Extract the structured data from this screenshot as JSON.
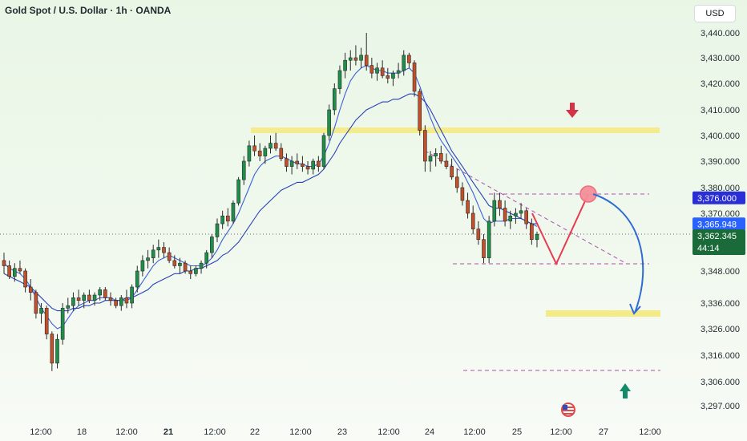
{
  "chart_header": {
    "title": "Gold Spot / U.S. Dollar · 1h · OANDA",
    "currency": "USD"
  },
  "chart_data": {
    "type": "candlestick",
    "title": "Gold Spot / U.S. Dollar · 1h · OANDA",
    "symbol": "XAUUSD",
    "timeframe": "1h",
    "yrange": [
      3294,
      3446
    ],
    "y_ticks": [
      "3,440.000",
      "3,430.000",
      "3,420.000",
      "3,410.000",
      "3,400.000",
      "3,390.000",
      "3,380.000",
      "3,370.000",
      "3,348.000",
      "3,336.000",
      "3,326.000",
      "3,316.000",
      "3,306.000",
      "3,297.000"
    ],
    "x_ticks": [
      "12:00",
      "18",
      "12:00",
      "21",
      "12:00",
      "22",
      "12:00",
      "23",
      "12:00",
      "24",
      "12:00",
      "25",
      "12:00",
      "27",
      "12:00"
    ],
    "price_labels": [
      {
        "value": 3376.0,
        "text": "3,376.000",
        "color": "#2a2ed6"
      },
      {
        "value": 3365.948,
        "text": "3,365.948",
        "color": "#2962ff"
      },
      {
        "value": 3362.345,
        "text": "3,362.345",
        "sub": "44:14",
        "color": "#1b6b3a"
      }
    ],
    "candles_ohlc": [
      [
        3352,
        3355,
        3347,
        3350
      ],
      [
        3350,
        3352,
        3345,
        3346
      ],
      [
        3346,
        3351,
        3344,
        3349
      ],
      [
        3349,
        3352,
        3347,
        3348
      ],
      [
        3348,
        3349,
        3340,
        3342
      ],
      [
        3342,
        3345,
        3337,
        3340
      ],
      [
        3340,
        3341,
        3330,
        3332
      ],
      [
        3332,
        3336,
        3328,
        3334
      ],
      [
        3334,
        3335,
        3322,
        3324
      ],
      [
        3324,
        3325,
        3310,
        3313
      ],
      [
        3313,
        3324,
        3311,
        3322
      ],
      [
        3322,
        3336,
        3320,
        3334
      ],
      [
        3334,
        3338,
        3332,
        3335
      ],
      [
        3335,
        3340,
        3333,
        3338
      ],
      [
        3338,
        3341,
        3335,
        3337
      ],
      [
        3337,
        3340,
        3334,
        3339
      ],
      [
        3339,
        3341,
        3336,
        3337
      ],
      [
        3337,
        3340,
        3335,
        3339
      ],
      [
        3339,
        3342,
        3337,
        3341
      ],
      [
        3341,
        3342,
        3337,
        3338
      ],
      [
        3338,
        3340,
        3335,
        3337
      ],
      [
        3337,
        3338,
        3334,
        3335
      ],
      [
        3335,
        3339,
        3333,
        3338
      ],
      [
        3338,
        3341,
        3334,
        3336
      ],
      [
        3336,
        3343,
        3334,
        3342
      ],
      [
        3342,
        3350,
        3340,
        3348
      ],
      [
        3348,
        3354,
        3346,
        3352
      ],
      [
        3352,
        3356,
        3349,
        3353
      ],
      [
        3353,
        3358,
        3351,
        3356
      ],
      [
        3356,
        3360,
        3353,
        3357
      ],
      [
        3357,
        3359,
        3353,
        3355
      ],
      [
        3355,
        3357,
        3351,
        3352
      ],
      [
        3352,
        3354,
        3349,
        3350
      ],
      [
        3350,
        3353,
        3347,
        3351
      ],
      [
        3351,
        3352,
        3347,
        3348
      ],
      [
        3348,
        3350,
        3345,
        3347
      ],
      [
        3347,
        3350,
        3346,
        3349
      ],
      [
        3349,
        3352,
        3347,
        3351
      ],
      [
        3351,
        3356,
        3349,
        3355
      ],
      [
        3355,
        3362,
        3353,
        3361
      ],
      [
        3361,
        3368,
        3359,
        3366
      ],
      [
        3366,
        3371,
        3364,
        3369
      ],
      [
        3369,
        3372,
        3365,
        3367
      ],
      [
        3367,
        3375,
        3366,
        3374
      ],
      [
        3374,
        3384,
        3373,
        3383
      ],
      [
        3383,
        3392,
        3381,
        3390
      ],
      [
        3390,
        3398,
        3388,
        3396
      ],
      [
        3396,
        3400,
        3392,
        3394
      ],
      [
        3394,
        3397,
        3390,
        3392
      ],
      [
        3392,
        3396,
        3389,
        3395
      ],
      [
        3395,
        3400,
        3393,
        3397
      ],
      [
        3397,
        3401,
        3394,
        3395
      ],
      [
        3395,
        3397,
        3390,
        3391
      ],
      [
        3391,
        3393,
        3386,
        3388
      ],
      [
        3388,
        3392,
        3385,
        3390
      ],
      [
        3390,
        3393,
        3387,
        3389
      ],
      [
        3389,
        3392,
        3386,
        3388
      ],
      [
        3388,
        3390,
        3385,
        3387
      ],
      [
        3387,
        3391,
        3385,
        3390
      ],
      [
        3390,
        3392,
        3386,
        3388
      ],
      [
        3388,
        3401,
        3387,
        3400
      ],
      [
        3400,
        3412,
        3398,
        3410
      ],
      [
        3410,
        3420,
        3408,
        3418
      ],
      [
        3418,
        3427,
        3416,
        3425
      ],
      [
        3425,
        3432,
        3422,
        3429
      ],
      [
        3429,
        3433,
        3425,
        3430
      ],
      [
        3430,
        3435,
        3427,
        3429
      ],
      [
        3429,
        3434,
        3426,
        3431
      ],
      [
        3431,
        3440,
        3425,
        3427
      ],
      [
        3427,
        3430,
        3422,
        3424
      ],
      [
        3424,
        3428,
        3421,
        3426
      ],
      [
        3426,
        3429,
        3422,
        3423
      ],
      [
        3423,
        3426,
        3420,
        3422
      ],
      [
        3422,
        3425,
        3419,
        3424
      ],
      [
        3424,
        3428,
        3422,
        3425
      ],
      [
        3425,
        3433,
        3423,
        3431
      ],
      [
        3431,
        3432,
        3426,
        3428
      ],
      [
        3428,
        3429,
        3415,
        3417
      ],
      [
        3417,
        3418,
        3400,
        3402
      ],
      [
        3402,
        3404,
        3386,
        3390
      ],
      [
        3390,
        3394,
        3386,
        3392
      ],
      [
        3392,
        3395,
        3388,
        3393
      ],
      [
        3393,
        3396,
        3389,
        3390
      ],
      [
        3390,
        3393,
        3387,
        3388
      ],
      [
        3388,
        3391,
        3383,
        3384
      ],
      [
        3384,
        3387,
        3378,
        3380
      ],
      [
        3380,
        3382,
        3373,
        3375
      ],
      [
        3375,
        3378,
        3368,
        3370
      ],
      [
        3370,
        3373,
        3362,
        3364
      ],
      [
        3364,
        3367,
        3358,
        3360
      ],
      [
        3360,
        3362,
        3351,
        3353
      ],
      [
        3353,
        3369,
        3351,
        3367
      ],
      [
        3367,
        3378,
        3365,
        3375
      ],
      [
        3375,
        3378,
        3369,
        3372
      ],
      [
        3372,
        3375,
        3365,
        3367
      ],
      [
        3367,
        3371,
        3364,
        3369
      ],
      [
        3369,
        3372,
        3366,
        3370
      ],
      [
        3370,
        3374,
        3368,
        3371
      ],
      [
        3371,
        3372,
        3364,
        3366
      ],
      [
        3366,
        3368,
        3358,
        3360
      ],
      [
        3360,
        3363,
        3357,
        3362
      ]
    ],
    "moving_average_fast": [
      3351,
      3349,
      3348,
      3347,
      3345,
      3342,
      3338,
      3334,
      3331,
      3328,
      3326,
      3327,
      3330,
      3333,
      3335,
      3336,
      3337,
      3337,
      3338,
      3338,
      3338,
      3337,
      3337,
      3337,
      3338,
      3341,
      3344,
      3347,
      3350,
      3352,
      3353,
      3354,
      3353,
      3352,
      3351,
      3350,
      3350,
      3350,
      3351,
      3353,
      3356,
      3360,
      3363,
      3366,
      3370,
      3375,
      3380,
      3385,
      3388,
      3390,
      3391,
      3392,
      3392,
      3391,
      3390,
      3389,
      3389,
      3388,
      3388,
      3389,
      3392,
      3397,
      3403,
      3410,
      3416,
      3421,
      3424,
      3426,
      3427,
      3426,
      3425,
      3425,
      3424,
      3424,
      3424,
      3425,
      3426,
      3424,
      3419,
      3413,
      3407,
      3402,
      3398,
      3395,
      3392,
      3389,
      3386,
      3382,
      3378,
      3373,
      3368,
      3366,
      3367,
      3367,
      3367,
      3368,
      3368,
      3368,
      3367,
      3366,
      3365
    ],
    "moving_average_slow": [
      3347,
      3346,
      3345,
      3344,
      3343,
      3342,
      3340,
      3338,
      3336,
      3334,
      3333,
      3333,
      3333,
      3334,
      3334,
      3335,
      3335,
      3336,
      3336,
      3337,
      3337,
      3337,
      3337,
      3338,
      3338,
      3339,
      3340,
      3341,
      3343,
      3344,
      3345,
      3346,
      3347,
      3347,
      3348,
      3348,
      3349,
      3349,
      3350,
      3351,
      3352,
      3354,
      3355,
      3357,
      3359,
      3362,
      3365,
      3368,
      3371,
      3373,
      3375,
      3377,
      3379,
      3380,
      3381,
      3382,
      3382,
      3383,
      3384,
      3385,
      3387,
      3390,
      3393,
      3397,
      3400,
      3403,
      3406,
      3408,
      3410,
      3411,
      3412,
      3413,
      3413,
      3414,
      3414,
      3415,
      3416,
      3416,
      3415,
      3413,
      3410,
      3406,
      3402,
      3398,
      3394,
      3391,
      3388,
      3385,
      3382,
      3379,
      3376,
      3373,
      3372,
      3372,
      3371,
      3370,
      3369,
      3368,
      3367,
      3366,
      3366
    ],
    "annotations": {
      "resistance_zone": [
        3400,
        3403
      ],
      "support_zone": [
        3333,
        3336
      ],
      "dashed_levels": [
        3376,
        3350,
        3310
      ],
      "forecast_path": [
        3367,
        3350,
        3376,
        3334
      ],
      "down_arrow_label": "resistance",
      "up_arrow_label": "support"
    },
    "grid": false,
    "last_price": 3362.345,
    "countdown": "44:14"
  }
}
